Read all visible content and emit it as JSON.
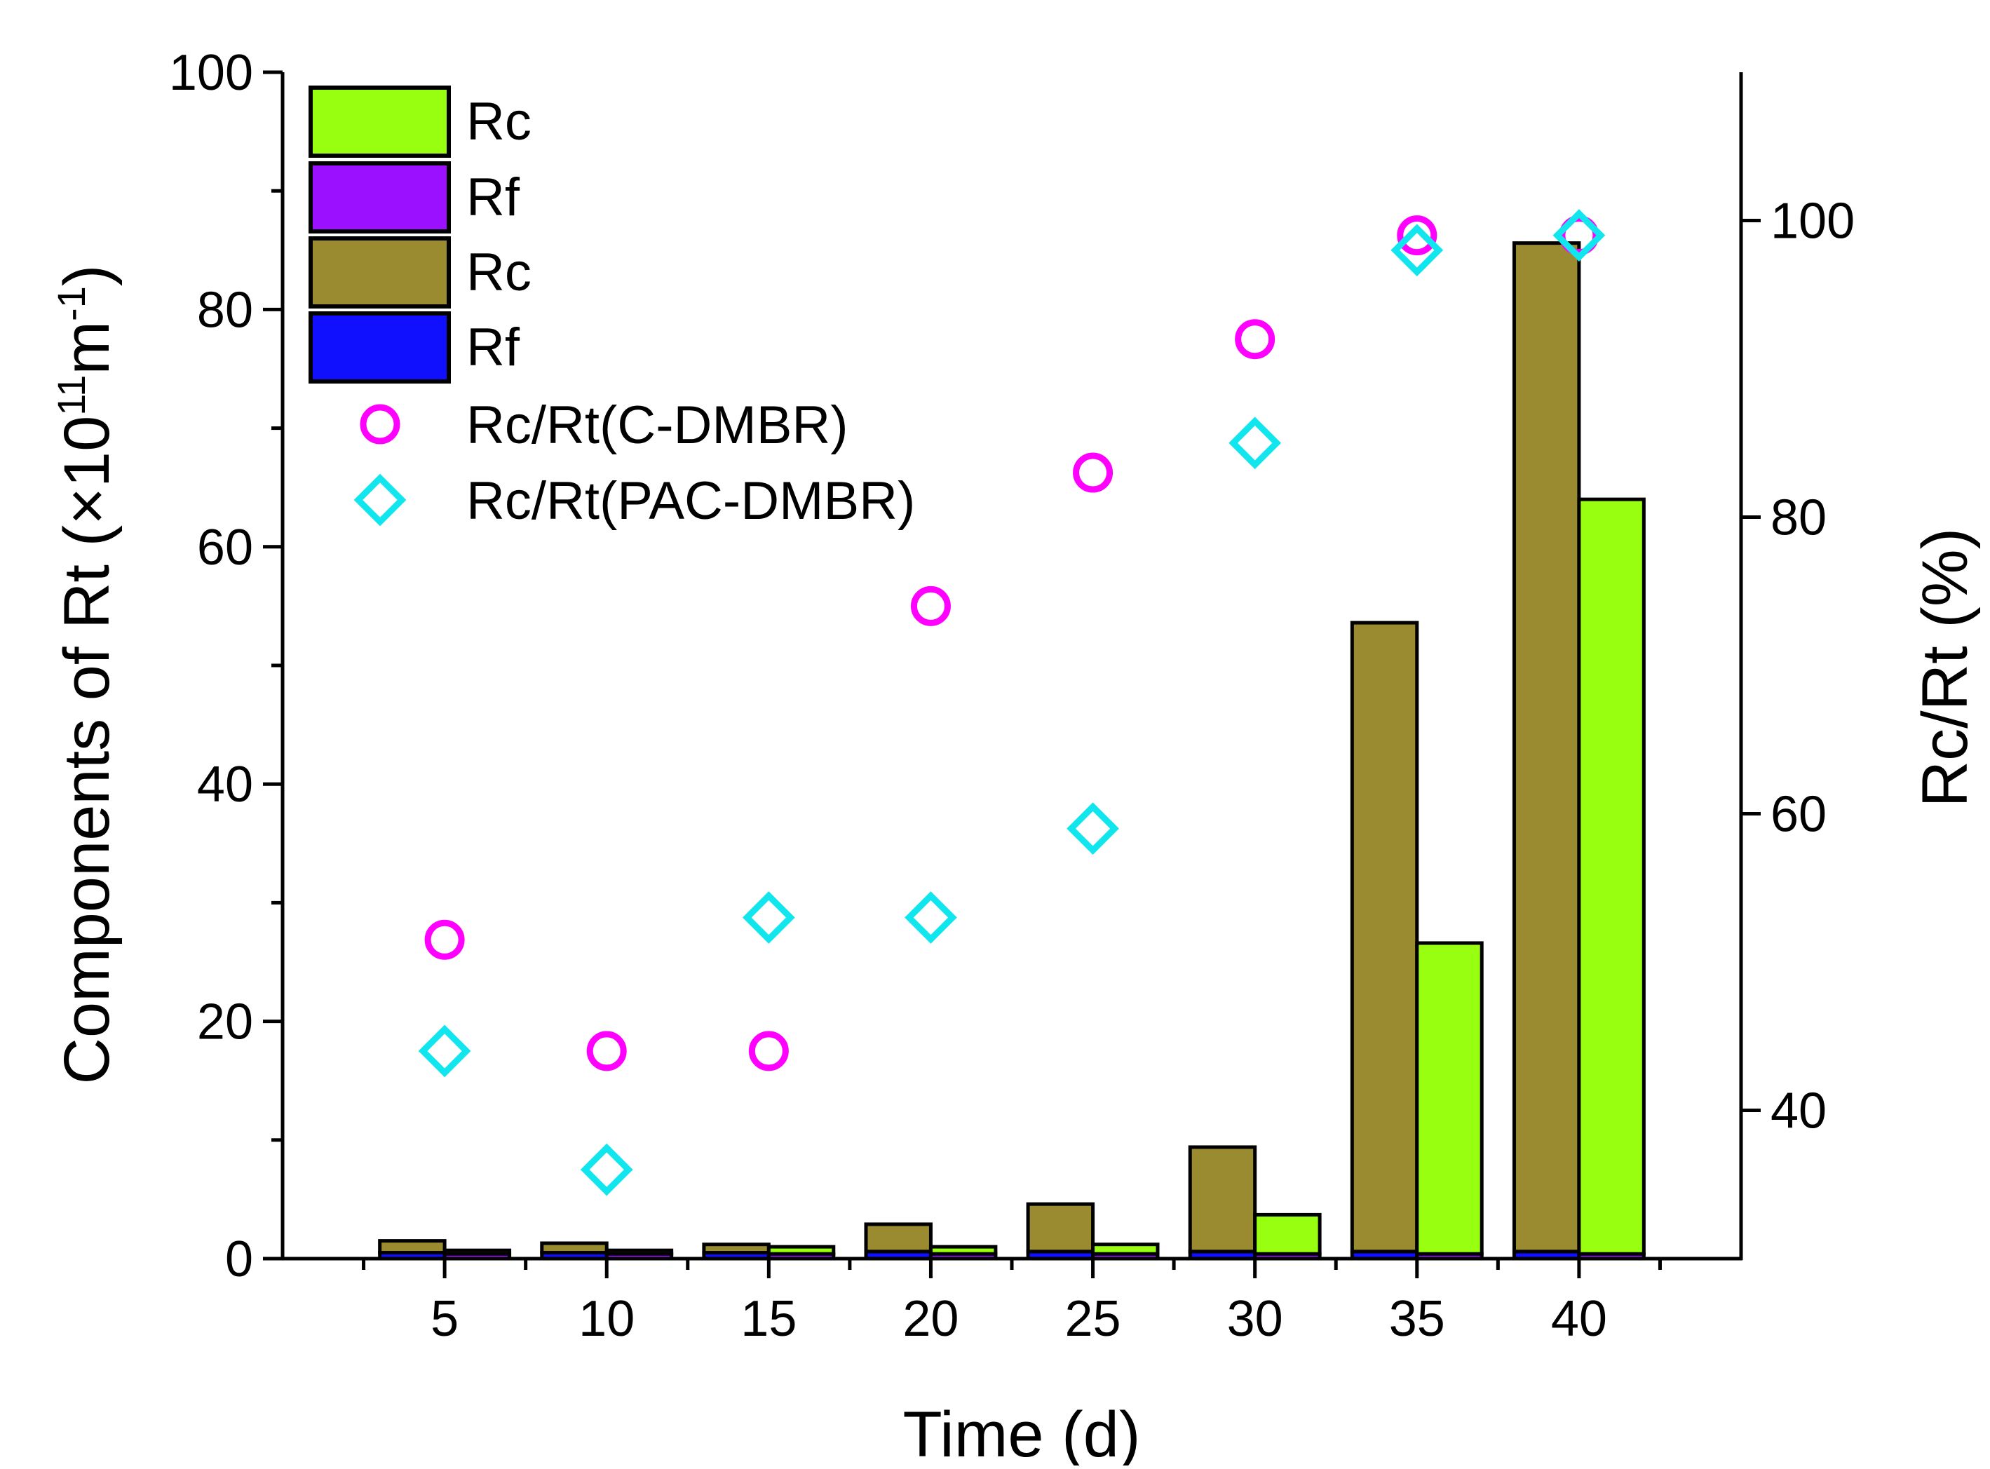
{
  "chart_data": {
    "type": "bar",
    "title": "",
    "xlabel": "Time (d)",
    "ylabel_left": {
      "prefix": "Components of Rt (×10",
      "sup1": "11",
      "mid": "m",
      "sup2": "-1",
      "suffix": ")"
    },
    "ylabel_right": "Rc/Rt (%)",
    "categories": [
      5,
      10,
      15,
      20,
      25,
      30,
      35,
      40
    ],
    "category_labels": [
      "5",
      "10",
      "15",
      "20",
      "25",
      "30",
      "35",
      "40"
    ],
    "xlim": [
      0,
      45
    ],
    "ylim_left": [
      0,
      100
    ],
    "ylim_right": [
      30,
      110
    ],
    "yticks_left": [
      0,
      20,
      40,
      60,
      80,
      100
    ],
    "yticks_left_labels": [
      "0",
      "20",
      "40",
      "60",
      "80",
      "100"
    ],
    "yticks_right": [
      40,
      60,
      80,
      100
    ],
    "yticks_right_labels": [
      "40",
      "60",
      "80",
      "100"
    ],
    "bar_groups": [
      {
        "name": "C-DMBR",
        "offset": -1,
        "stack": [
          {
            "name": "Rf",
            "color": "#1010ff",
            "values": [
              0.5,
              0.5,
              0.5,
              0.6,
              0.6,
              0.6,
              0.6,
              0.6
            ]
          },
          {
            "name": "Rc",
            "color": "#9a8a30",
            "values": [
              1.0,
              0.8,
              0.7,
              2.3,
              4.0,
              8.8,
              53.0,
              85.0
            ]
          }
        ]
      },
      {
        "name": "PAC-DMBR",
        "offset": 1,
        "stack": [
          {
            "name": "Rf",
            "color": "#9a10ff",
            "values": [
              0.4,
              0.4,
              0.4,
              0.4,
              0.4,
              0.4,
              0.4,
              0.4
            ]
          },
          {
            "name": "Rc",
            "color": "#99ff11",
            "values": [
              0.3,
              0.3,
              0.6,
              0.6,
              0.8,
              3.3,
              26.2,
              63.6
            ]
          }
        ]
      }
    ],
    "scatter_series": [
      {
        "name": "Rc/Rt(C-DMBR)",
        "marker": "circle",
        "color": "#ff00ff",
        "x": [
          5,
          10,
          15,
          20,
          25,
          30,
          35,
          40
        ],
        "y": [
          51.5,
          44,
          44,
          74,
          83,
          92,
          99,
          99
        ]
      },
      {
        "name": "Rc/Rt(PAC-DMBR)",
        "marker": "diamond",
        "color": "#11e6ee",
        "x": [
          5,
          10,
          15,
          20,
          25,
          30,
          35,
          40
        ],
        "y": [
          44,
          36,
          53,
          53,
          59,
          85,
          98,
          99
        ]
      }
    ],
    "legend": [
      {
        "label": "Rc",
        "kind": "bar",
        "color": "#99ff11"
      },
      {
        "label": "Rf",
        "kind": "bar",
        "color": "#9a10ff"
      },
      {
        "label": "Rc",
        "kind": "bar",
        "color": "#9a8a30"
      },
      {
        "label": "Rf",
        "kind": "bar",
        "color": "#1010ff"
      },
      {
        "label": "Rc/Rt(C-DMBR)",
        "kind": "circle",
        "color": "#ff00ff"
      },
      {
        "label": "Rc/Rt(PAC-DMBR)",
        "kind": "diamond",
        "color": "#11e6ee"
      }
    ],
    "legend_position": "top-left",
    "grid": false
  }
}
